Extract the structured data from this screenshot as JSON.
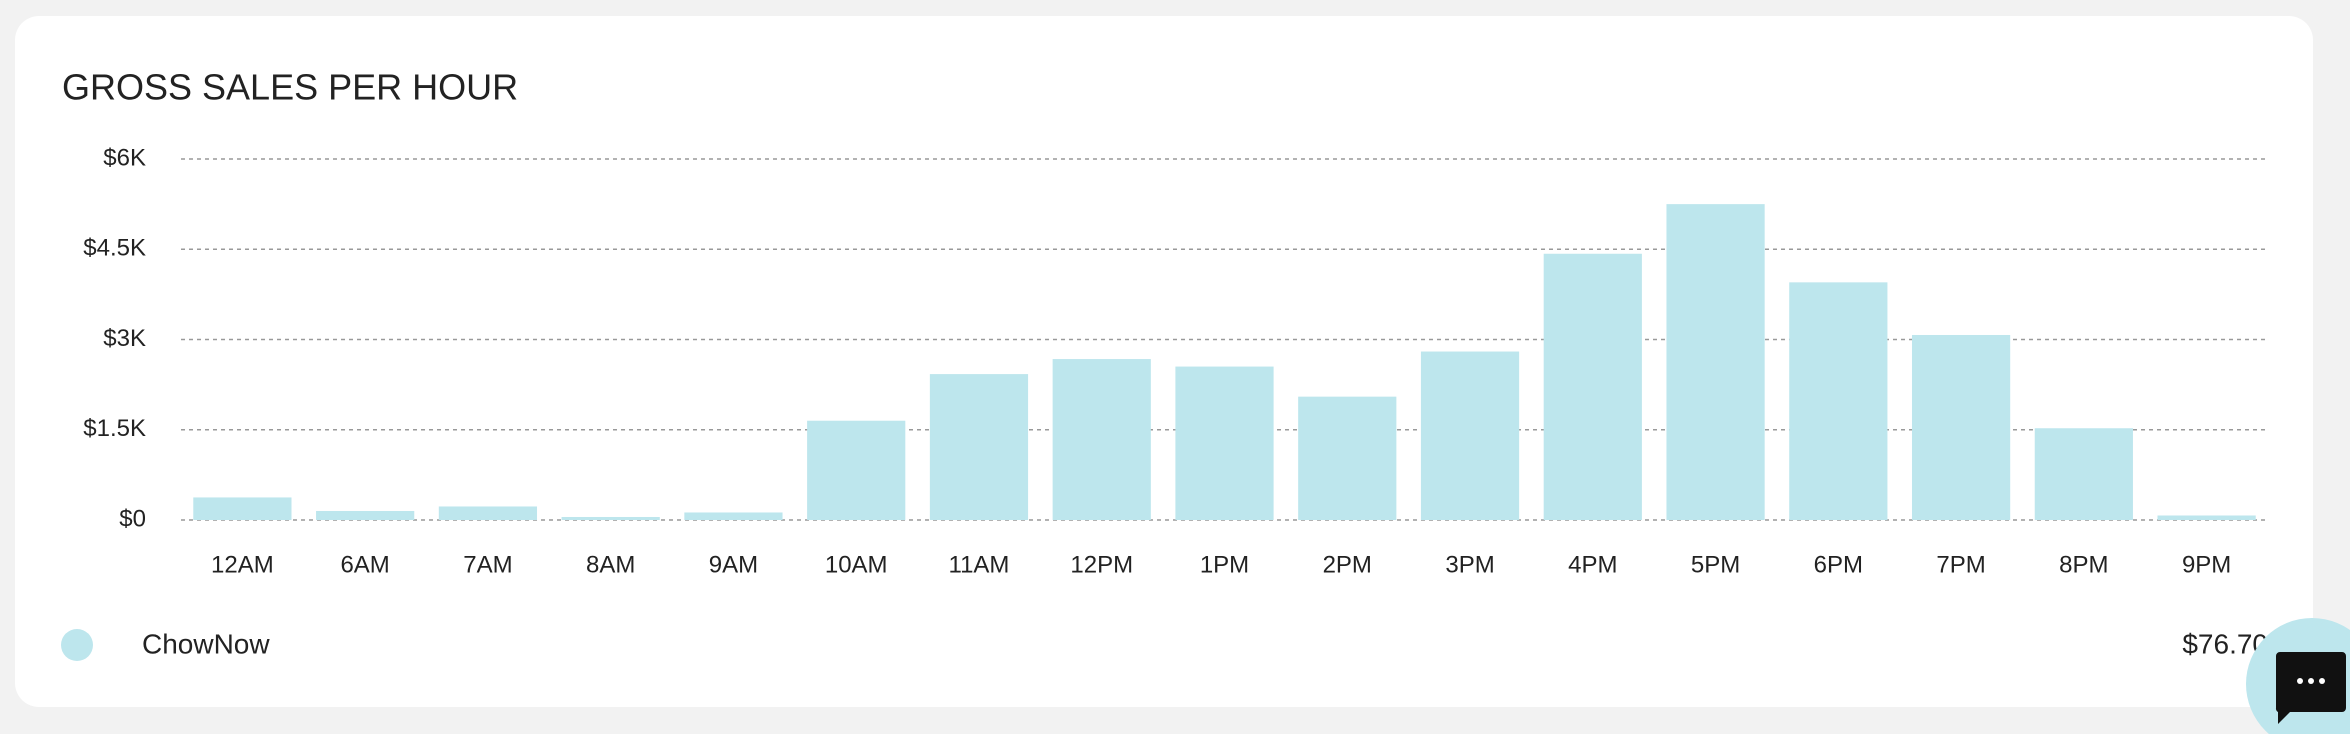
{
  "chart_data": {
    "type": "bar",
    "title": "GROSS SALES PER HOUR",
    "categories": [
      "12AM",
      "6AM",
      "7AM",
      "8AM",
      "9AM",
      "10AM",
      "11AM",
      "12PM",
      "1PM",
      "2PM",
      "3PM",
      "4PM",
      "5PM",
      "6PM",
      "7PM",
      "8PM",
      "9PM"
    ],
    "series": [
      {
        "name": "ChowNow",
        "color": "#bde6ed",
        "values": [
          375,
          150,
          225,
          50,
          125,
          1650,
          2425,
          2675,
          2550,
          2050,
          2800,
          4425,
          5250,
          3950,
          3075,
          1525,
          75
        ]
      }
    ],
    "total_label": "$76.70",
    "ylim": [
      0,
      6000
    ],
    "yticks": [
      {
        "value": 0,
        "label": "$0"
      },
      {
        "value": 1500,
        "label": "$1.5K"
      },
      {
        "value": 3000,
        "label": "$3K"
      },
      {
        "value": 4500,
        "label": "$4.5K"
      },
      {
        "value": 6000,
        "label": "$6K"
      }
    ],
    "grid": true
  }
}
